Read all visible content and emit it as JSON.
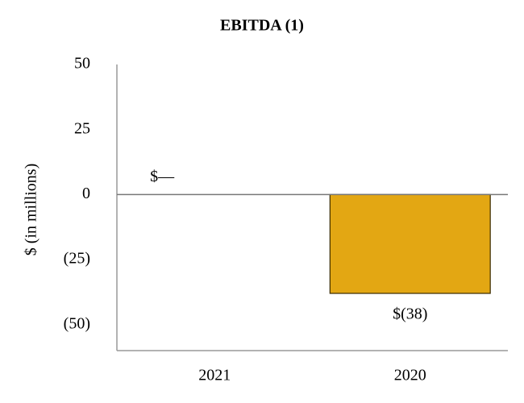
{
  "chart_data": {
    "type": "bar",
    "title": "EBITDA (1)",
    "ylabel": "$ (in millions)",
    "categories": [
      "2021",
      "2020"
    ],
    "values": [
      0,
      -38
    ],
    "value_labels": [
      "$—",
      "$(38)"
    ],
    "color": "#e3a713",
    "ylim": [
      -60,
      50
    ],
    "yticks": [
      50,
      25,
      0,
      {
        "value": -25,
        "label": "(25)"
      },
      {
        "value": -50,
        "label": "(50)"
      }
    ],
    "grid": false
  }
}
